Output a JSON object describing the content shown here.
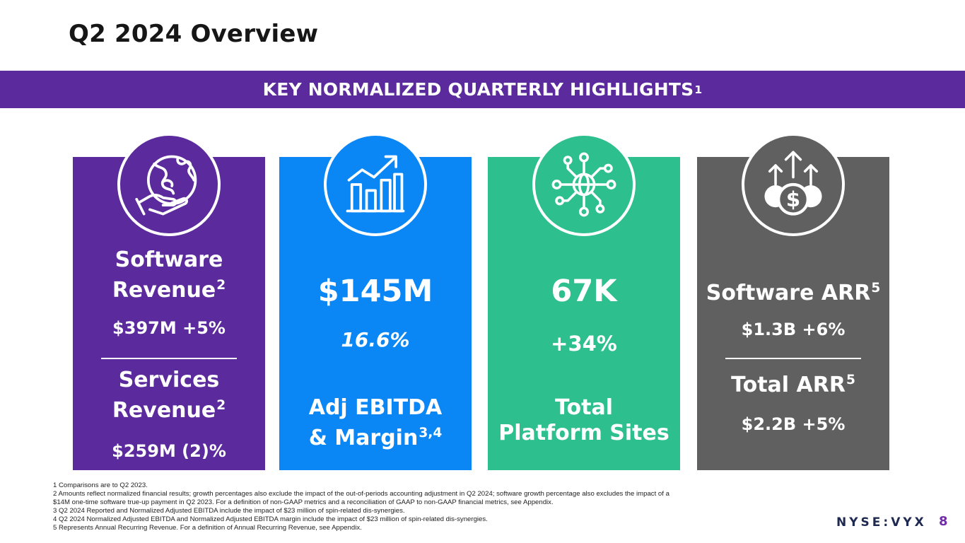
{
  "slide": {
    "title": "Q2 2024 Overview",
    "banner": {
      "text": "KEY NORMALIZED QUARTERLY HIGHLIGHTS",
      "sup": "1"
    },
    "page_number": "8",
    "ticker": "NYSE:VYX"
  },
  "cards": {
    "software": {
      "icon": "globe-puzzle-hand-icon",
      "label_line1": "Software",
      "label_line2": "Revenue",
      "label_sup": "2",
      "value": "$397M +5%",
      "label2_line1": "Services",
      "label2_line2": "Revenue",
      "label2_sup": "2",
      "value2": "$259M (2)%"
    },
    "ebitda": {
      "icon": "growth-bar-chart-icon",
      "value": "$145M",
      "margin": "16.6%",
      "label_line1": "Adj EBITDA",
      "label_line2": "& Margin",
      "label_sup": "3,4"
    },
    "sites": {
      "icon": "network-globe-icon",
      "value": "67K",
      "growth": "+34%",
      "label_line1": "Total",
      "label_line2": "Platform Sites"
    },
    "arr": {
      "icon": "dollar-coins-arrows-icon",
      "label": "Software ARR",
      "label_sup": "5",
      "value": "$1.3B +6%",
      "label2": "Total ARR",
      "label2_sup": "5",
      "value2": "$2.2B +5%"
    }
  },
  "colors": {
    "purple": "#5b2a9c",
    "blue": "#0a86f5",
    "green": "#2dbf8e",
    "gray": "#606060"
  },
  "footnotes": [
    "1 Comparisons are to Q2 2023.",
    "2 Amounts reflect normalized financial results; growth percentages also exclude the impact of the out-of-periods accounting adjustment in Q2 2024; software growth percentage also excludes the impact of a",
    "$14M one-time software true-up payment in Q2 2023. For a definition of non-GAAP metrics and a reconciliation of GAAP to non-GAAP financial metrics, see Appendix.",
    "3 Q2 2024 Reported and Normalized Adjusted EBITDA include the impact of $23 million of spin-related dis-synergies.",
    "4 Q2 2024 Normalized Adjusted EBITDA and Normalized Adjusted EBITDA margin include the impact of $23 million of spin-related dis-synergies.",
    "5 Represents Annual Recurring Revenue. For a definition of Annual Recurring Revenue, see Appendix."
  ]
}
